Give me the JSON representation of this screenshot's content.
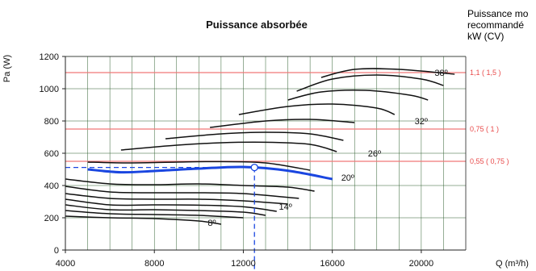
{
  "colors": {
    "grid": "#2f5f2f",
    "power_line": "#f07878",
    "power_text": "#e84a4a",
    "curve": "#111111",
    "highlight": "#1a46e0",
    "operating": "#1a46e0"
  },
  "chart_data": {
    "type": "line",
    "title": "Puissance absorbée",
    "ylabel": "Pa (W)",
    "xlabel": "Q (m³/h)",
    "xlim": [
      4000,
      22000
    ],
    "ylim": [
      0,
      1200
    ],
    "x_ticks": [
      "4000",
      "8000",
      "12000",
      "16000",
      "20000"
    ],
    "y_ticks": [
      "0",
      "200",
      "400",
      "600",
      "800",
      "1000",
      "1200"
    ],
    "grid": true,
    "right_title": [
      "Puissance mo",
      "recommandé",
      "kW (CV)"
    ],
    "power_lines": [
      {
        "label": "0,55 ( 0,75 )",
        "value": 550
      },
      {
        "label": "0,75 ( 1 )",
        "value": 750
      },
      {
        "label": "1,1 ( 1,5 )",
        "value": 1100
      }
    ],
    "angle_labels": [
      {
        "text": "8º",
        "x": 10400,
        "y": 150
      },
      {
        "text": "14º",
        "x": 13600,
        "y": 250
      },
      {
        "text": "20º",
        "x": 16400,
        "y": 430
      },
      {
        "text": "26º",
        "x": 17600,
        "y": 580
      },
      {
        "text": "32º",
        "x": 19700,
        "y": 780
      },
      {
        "text": "38º",
        "x": 20600,
        "y": 1080
      }
    ],
    "curves": [
      [
        [
          4000,
          210
        ],
        [
          6000,
          200
        ],
        [
          8000,
          195
        ],
        [
          10000,
          180
        ],
        [
          11000,
          160
        ]
      ],
      [
        [
          4000,
          245
        ],
        [
          6000,
          225
        ],
        [
          8000,
          220
        ],
        [
          10000,
          215
        ],
        [
          12000,
          200
        ]
      ],
      [
        [
          4000,
          280
        ],
        [
          6000,
          250
        ],
        [
          8000,
          250
        ],
        [
          10000,
          245
        ],
        [
          12000,
          235
        ],
        [
          13000,
          215
        ]
      ],
      [
        [
          4000,
          315
        ],
        [
          6000,
          280
        ],
        [
          8000,
          280
        ],
        [
          10000,
          278
        ],
        [
          12000,
          268
        ],
        [
          13500,
          240
        ]
      ],
      [
        [
          4000,
          350
        ],
        [
          6000,
          320
        ],
        [
          8000,
          315
        ],
        [
          10000,
          315
        ],
        [
          12000,
          305
        ],
        [
          14000,
          285
        ]
      ],
      [
        [
          4000,
          395
        ],
        [
          6000,
          360
        ],
        [
          8000,
          355
        ],
        [
          10000,
          355
        ],
        [
          12000,
          350
        ],
        [
          14500,
          320
        ]
      ],
      [
        [
          4000,
          440
        ],
        [
          6000,
          410
        ],
        [
          8000,
          405
        ],
        [
          10000,
          410
        ],
        [
          12000,
          400
        ],
        [
          14000,
          390
        ],
        [
          15200,
          365
        ]
      ],
      [
        [
          5000,
          545
        ],
        [
          7000,
          540
        ],
        [
          9000,
          545
        ],
        [
          11000,
          548
        ],
        [
          13000,
          540
        ],
        [
          15000,
          495
        ]
      ],
      [
        [
          6500,
          620
        ],
        [
          9000,
          650
        ],
        [
          11000,
          665
        ],
        [
          13000,
          668
        ],
        [
          15000,
          655
        ],
        [
          16200,
          610
        ]
      ],
      [
        [
          8500,
          690
        ],
        [
          11000,
          720
        ],
        [
          13000,
          730
        ],
        [
          15000,
          720
        ],
        [
          16500,
          680
        ]
      ],
      [
        [
          10500,
          760
        ],
        [
          13000,
          800
        ],
        [
          15000,
          810
        ],
        [
          17000,
          790
        ]
      ],
      [
        [
          11800,
          840
        ],
        [
          14000,
          890
        ],
        [
          16000,
          905
        ],
        [
          18000,
          880
        ],
        [
          18800,
          840
        ]
      ],
      [
        [
          14000,
          930
        ],
        [
          15500,
          980
        ],
        [
          17500,
          990
        ],
        [
          19500,
          960
        ],
        [
          20300,
          930
        ]
      ],
      [
        [
          14400,
          985
        ],
        [
          16000,
          1060
        ],
        [
          18000,
          1085
        ],
        [
          20000,
          1060
        ],
        [
          21000,
          1020
        ]
      ],
      [
        [
          15500,
          1070
        ],
        [
          17000,
          1120
        ],
        [
          19000,
          1120
        ],
        [
          21500,
          1090
        ]
      ]
    ],
    "highlight_curve": [
      [
        5000,
        500
      ],
      [
        6500,
        482
      ],
      [
        8000,
        490
      ],
      [
        10000,
        505
      ],
      [
        12000,
        515
      ],
      [
        14000,
        492
      ],
      [
        16000,
        440
      ]
    ],
    "operating_point": {
      "x": 12500,
      "y": 512
    }
  }
}
